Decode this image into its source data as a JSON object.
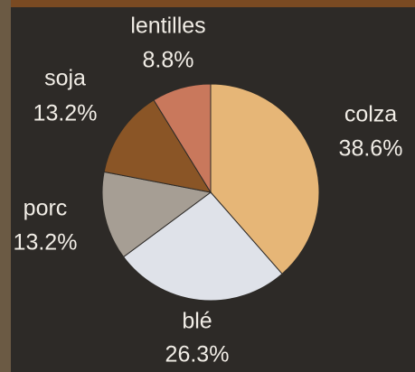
{
  "chart_data": {
    "type": "pie",
    "categories": [
      "colza",
      "blé",
      "porc",
      "soja",
      "lentilles"
    ],
    "values": [
      38.6,
      26.3,
      13.2,
      13.2,
      8.8
    ],
    "value_labels": [
      "38.6%",
      "26.3%",
      "13.2%",
      "13.2%",
      "8.8%"
    ],
    "colors": [
      "#e6b677",
      "#dfe2e9",
      "#a69e94",
      "#8a5526",
      "#c9785c"
    ]
  }
}
